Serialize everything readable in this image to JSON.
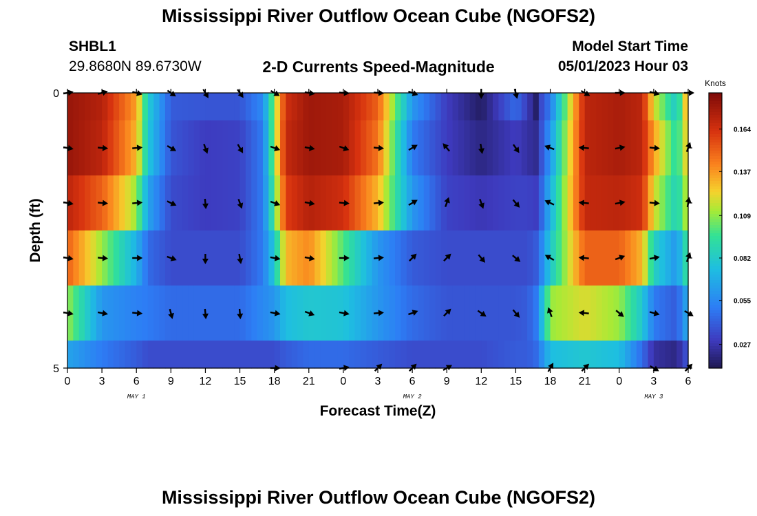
{
  "header": {
    "title": "Mississippi River Outflow Ocean Cube (NGOFS2)",
    "station_id": "SHBL1",
    "station_coords": "29.8680N  89.6730W",
    "subtitle": "2-D Currents Speed-Magnitude",
    "model_start_label": "Model Start Time",
    "model_start_value": "05/01/2023 Hour 03"
  },
  "footer": {
    "title": "Mississippi River Outflow Ocean Cube (NGOFS2)"
  },
  "chart_data": {
    "type": "heatmap",
    "xlabel": "Forecast Time(Z)",
    "ylabel": "Depth (ft)",
    "x_tick_labels": [
      "0",
      "3",
      "6",
      "9",
      "12",
      "15",
      "18",
      "21",
      "0",
      "3",
      "6",
      "9",
      "12",
      "15",
      "18",
      "21",
      "0",
      "3",
      "6"
    ],
    "y_tick_labels": [
      "0",
      "5"
    ],
    "xlim": [
      0,
      54
    ],
    "ylim": [
      0,
      5
    ],
    "date_labels": [
      {
        "text": "MAY 1",
        "hour": 6
      },
      {
        "text": "MAY 2",
        "hour": 30
      },
      {
        "text": "MAY 3",
        "hour": 51
      }
    ],
    "colorbar": {
      "label": "Knots",
      "tick_labels": [
        "0.164",
        "0.137",
        "0.109",
        "0.082",
        "0.055",
        "0.027"
      ],
      "tick_values": [
        0.164,
        0.137,
        0.109,
        0.082,
        0.055,
        0.027
      ],
      "range": [
        0.012,
        0.187
      ]
    },
    "depth_bands": [
      0.5,
      1.5,
      2.5,
      3.5,
      4.5,
      5.0
    ],
    "key_hours": [
      0,
      3,
      6,
      7,
      9,
      12,
      15,
      17,
      18,
      19,
      21,
      24,
      27,
      30,
      33,
      36,
      39,
      40,
      40.8,
      41,
      42,
      45,
      48,
      50,
      51,
      53,
      54
    ],
    "speed_rows": [
      [
        0.18,
        0.172,
        0.135,
        0.082,
        0.04,
        0.038,
        0.038,
        0.055,
        0.11,
        0.165,
        0.178,
        0.175,
        0.15,
        0.06,
        0.03,
        0.015,
        0.045,
        0.03,
        0.015,
        0.03,
        0.05,
        0.17,
        0.175,
        0.17,
        0.12,
        0.08,
        0.14
      ],
      [
        0.18,
        0.17,
        0.13,
        0.08,
        0.038,
        0.03,
        0.032,
        0.05,
        0.11,
        0.168,
        0.178,
        0.175,
        0.145,
        0.05,
        0.03,
        0.02,
        0.03,
        0.025,
        0.022,
        0.03,
        0.06,
        0.17,
        0.175,
        0.17,
        0.135,
        0.09,
        0.13
      ],
      [
        0.17,
        0.15,
        0.11,
        0.065,
        0.035,
        0.03,
        0.032,
        0.05,
        0.1,
        0.16,
        0.172,
        0.165,
        0.13,
        0.06,
        0.032,
        0.028,
        0.032,
        0.032,
        0.03,
        0.035,
        0.07,
        0.168,
        0.17,
        0.165,
        0.12,
        0.085,
        0.12
      ],
      [
        0.15,
        0.11,
        0.07,
        0.045,
        0.035,
        0.035,
        0.035,
        0.05,
        0.08,
        0.13,
        0.14,
        0.1,
        0.06,
        0.04,
        0.035,
        0.035,
        0.035,
        0.035,
        0.04,
        0.045,
        0.08,
        0.15,
        0.15,
        0.13,
        0.085,
        0.06,
        0.1
      ],
      [
        0.11,
        0.06,
        0.052,
        0.05,
        0.045,
        0.045,
        0.045,
        0.055,
        0.06,
        0.075,
        0.08,
        0.078,
        0.06,
        0.045,
        0.038,
        0.038,
        0.038,
        0.04,
        0.05,
        0.06,
        0.11,
        0.12,
        0.11,
        0.08,
        0.05,
        0.04,
        0.07
      ],
      [
        0.065,
        0.05,
        0.04,
        0.035,
        0.035,
        0.035,
        0.035,
        0.035,
        0.035,
        0.04,
        0.045,
        0.045,
        0.04,
        0.035,
        0.035,
        0.035,
        0.04,
        0.04,
        0.045,
        0.05,
        0.075,
        0.08,
        0.075,
        0.045,
        0.025,
        0.02,
        0.04
      ]
    ],
    "arrow_hours": [
      0,
      3,
      6,
      9,
      12,
      15,
      18,
      21,
      24,
      27,
      30,
      33,
      36,
      39,
      42,
      45,
      48,
      51,
      54
    ],
    "arrow_depths": [
      0,
      1,
      2,
      3,
      4,
      5
    ],
    "arrow_directions_deg": [
      [
        80,
        75,
        105,
        125,
        150,
        145,
        120,
        100,
        95,
        95,
        110,
        null,
        180,
        165,
        null,
        120,
        90,
        105,
        90
      ],
      [
        100,
        95,
        85,
        120,
        160,
        150,
        110,
        100,
        110,
        95,
        60,
        320,
        170,
        145,
        290,
        275,
        80,
        95,
        20
      ],
      [
        100,
        95,
        85,
        115,
        175,
        160,
        110,
        100,
        95,
        85,
        60,
        20,
        160,
        140,
        295,
        275,
        80,
        95,
        10
      ],
      [
        100,
        95,
        90,
        110,
        180,
        170,
        100,
        100,
        90,
        85,
        45,
        45,
        140,
        130,
        300,
        275,
        70,
        80,
        20
      ],
      [
        100,
        100,
        95,
        165,
        175,
        175,
        100,
        110,
        100,
        85,
        70,
        45,
        125,
        140,
        340,
        275,
        130,
        105,
        120
      ],
      [
        null,
        null,
        null,
        null,
        null,
        null,
        90,
        null,
        80,
        45,
        45,
        60,
        null,
        null,
        30,
        45,
        null,
        120,
        45
      ]
    ]
  }
}
